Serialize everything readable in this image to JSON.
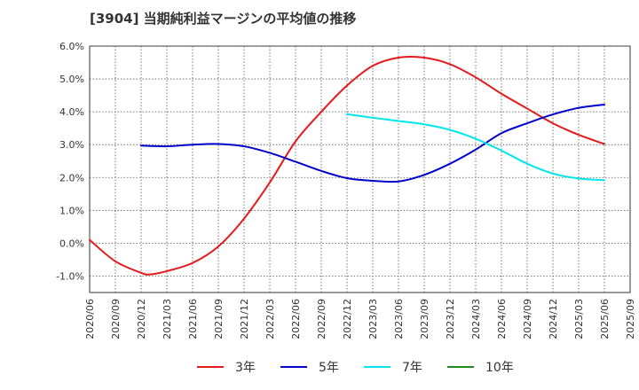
{
  "chart_data": {
    "type": "line",
    "title": "[3904]  当期純利益マージンの平均値の推移",
    "xlabel": "",
    "ylabel": "",
    "ylim": [
      -1.5,
      6.0
    ],
    "y_ticks": [
      "6.0%",
      "5.0%",
      "4.0%",
      "3.0%",
      "2.0%",
      "1.0%",
      "0.0%",
      "-1.0%"
    ],
    "y_tick_values": [
      6,
      5,
      4,
      3,
      2,
      1,
      0,
      -1
    ],
    "x_ticks": [
      "2020/06",
      "2020/09",
      "2020/12",
      "2021/03",
      "2021/06",
      "2021/09",
      "2021/12",
      "2022/03",
      "2022/06",
      "2022/09",
      "2022/12",
      "2023/03",
      "2023/06",
      "2023/09",
      "2023/12",
      "2024/03",
      "2024/06",
      "2024/09",
      "2024/12",
      "2025/03",
      "2025/06",
      "2025/09"
    ],
    "grid": true,
    "legend_position": "bottom",
    "series": [
      {
        "name": "3年",
        "color": "#e41a1c",
        "points": [
          [
            "2020/06",
            0.1
          ],
          [
            "2020/09",
            -0.55
          ],
          [
            "2020/12",
            -0.9
          ],
          [
            "2021/01",
            -0.95
          ],
          [
            "2021/03",
            -0.85
          ],
          [
            "2021/06",
            -0.6
          ],
          [
            "2021/09",
            -0.1
          ],
          [
            "2021/12",
            0.75
          ],
          [
            "2022/03",
            1.85
          ],
          [
            "2022/06",
            3.1
          ],
          [
            "2022/09",
            4.0
          ],
          [
            "2022/12",
            4.8
          ],
          [
            "2023/03",
            5.4
          ],
          [
            "2023/06",
            5.65
          ],
          [
            "2023/09",
            5.65
          ],
          [
            "2023/12",
            5.45
          ],
          [
            "2024/03",
            5.05
          ],
          [
            "2024/06",
            4.55
          ],
          [
            "2024/09",
            4.1
          ],
          [
            "2024/12",
            3.65
          ],
          [
            "2025/03",
            3.3
          ],
          [
            "2025/06",
            3.02
          ]
        ]
      },
      {
        "name": "5年",
        "color": "#0000cc",
        "points": [
          [
            "2020/12",
            2.97
          ],
          [
            "2021/03",
            2.95
          ],
          [
            "2021/06",
            3.0
          ],
          [
            "2021/09",
            3.02
          ],
          [
            "2021/12",
            2.95
          ],
          [
            "2022/03",
            2.75
          ],
          [
            "2022/06",
            2.48
          ],
          [
            "2022/09",
            2.2
          ],
          [
            "2022/12",
            1.98
          ],
          [
            "2023/03",
            1.9
          ],
          [
            "2023/06",
            1.88
          ],
          [
            "2023/09",
            2.08
          ],
          [
            "2023/12",
            2.42
          ],
          [
            "2024/03",
            2.85
          ],
          [
            "2024/06",
            3.35
          ],
          [
            "2024/09",
            3.65
          ],
          [
            "2024/12",
            3.92
          ],
          [
            "2025/03",
            4.12
          ],
          [
            "2025/06",
            4.22
          ]
        ]
      },
      {
        "name": "7年",
        "color": "#00e5ee",
        "points": [
          [
            "2022/12",
            3.93
          ],
          [
            "2023/03",
            3.82
          ],
          [
            "2023/06",
            3.72
          ],
          [
            "2023/09",
            3.62
          ],
          [
            "2023/12",
            3.45
          ],
          [
            "2024/03",
            3.18
          ],
          [
            "2024/06",
            2.82
          ],
          [
            "2024/09",
            2.42
          ],
          [
            "2024/12",
            2.12
          ],
          [
            "2025/03",
            1.97
          ],
          [
            "2025/06",
            1.92
          ]
        ]
      },
      {
        "name": "10年",
        "color": "#228b22",
        "points": []
      }
    ]
  }
}
